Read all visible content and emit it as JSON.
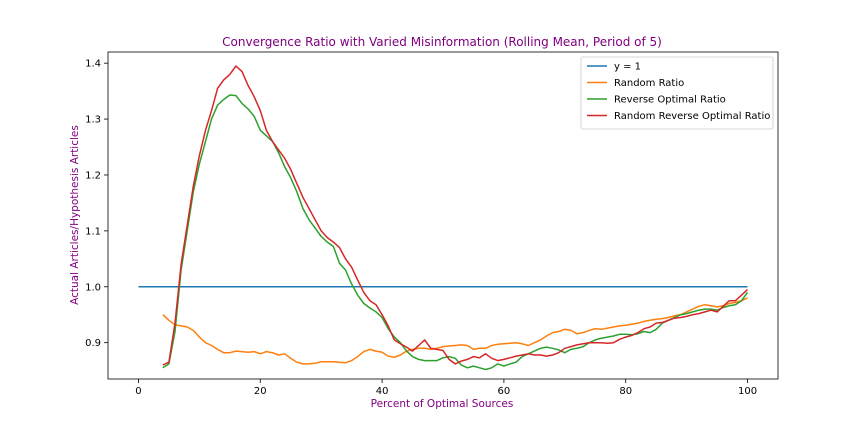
{
  "chart_data": {
    "type": "line",
    "title": "Convergence Ratio with Varied Misinformation (Rolling Mean, Period of 5)",
    "xlabel": "Percent of Optimal Sources",
    "ylabel": "Actual Articles/Hypothesis Articles",
    "xlim": [
      -5,
      105
    ],
    "ylim": [
      0.835,
      1.42
    ],
    "x_ticks": [
      0,
      20,
      40,
      60,
      80,
      100
    ],
    "x_tick_labels": [
      "0",
      "20",
      "40",
      "60",
      "80",
      "100"
    ],
    "y_ticks": [
      0.9,
      1.0,
      1.1,
      1.2,
      1.3,
      1.4
    ],
    "y_tick_labels": [
      "0.9",
      "1.0",
      "1.1",
      "1.2",
      "1.3",
      "1.4"
    ],
    "grid": false,
    "legend_position": "top-right",
    "series": [
      {
        "name": "y = 1",
        "color": "#1f77b4",
        "points": [
          [
            0,
            1.0
          ],
          [
            100,
            1.0
          ]
        ]
      },
      {
        "name": "Random Ratio",
        "color": "#ff7f0e",
        "points": [
          [
            4,
            0.95
          ],
          [
            5,
            0.94
          ],
          [
            6,
            0.932
          ],
          [
            7,
            0.93
          ],
          [
            8,
            0.928
          ],
          [
            9,
            0.922
          ],
          [
            10,
            0.91
          ],
          [
            11,
            0.9
          ],
          [
            12,
            0.895
          ],
          [
            13,
            0.888
          ],
          [
            14,
            0.882
          ],
          [
            15,
            0.882
          ],
          [
            16,
            0.885
          ],
          [
            17,
            0.884
          ],
          [
            18,
            0.883
          ],
          [
            19,
            0.884
          ],
          [
            20,
            0.88
          ],
          [
            21,
            0.884
          ],
          [
            22,
            0.882
          ],
          [
            23,
            0.878
          ],
          [
            24,
            0.88
          ],
          [
            25,
            0.872
          ],
          [
            26,
            0.865
          ],
          [
            27,
            0.862
          ],
          [
            28,
            0.862
          ],
          [
            29,
            0.863
          ],
          [
            30,
            0.866
          ],
          [
            32,
            0.866
          ],
          [
            34,
            0.864
          ],
          [
            35,
            0.868
          ],
          [
            36,
            0.875
          ],
          [
            37,
            0.884
          ],
          [
            38,
            0.888
          ],
          [
            39,
            0.885
          ],
          [
            40,
            0.883
          ],
          [
            41,
            0.876
          ],
          [
            42,
            0.874
          ],
          [
            43,
            0.878
          ],
          [
            44,
            0.885
          ],
          [
            45,
            0.888
          ],
          [
            46,
            0.89
          ],
          [
            47,
            0.89
          ],
          [
            48,
            0.888
          ],
          [
            49,
            0.89
          ],
          [
            50,
            0.893
          ],
          [
            51,
            0.894
          ],
          [
            52,
            0.895
          ],
          [
            53,
            0.896
          ],
          [
            54,
            0.895
          ],
          [
            55,
            0.888
          ],
          [
            56,
            0.89
          ],
          [
            57,
            0.89
          ],
          [
            58,
            0.895
          ],
          [
            59,
            0.897
          ],
          [
            60,
            0.898
          ],
          [
            62,
            0.9
          ],
          [
            63,
            0.898
          ],
          [
            64,
            0.895
          ],
          [
            65,
            0.9
          ],
          [
            66,
            0.905
          ],
          [
            67,
            0.912
          ],
          [
            68,
            0.918
          ],
          [
            69,
            0.92
          ],
          [
            70,
            0.924
          ],
          [
            71,
            0.922
          ],
          [
            72,
            0.916
          ],
          [
            73,
            0.918
          ],
          [
            74,
            0.922
          ],
          [
            75,
            0.925
          ],
          [
            76,
            0.924
          ],
          [
            77,
            0.926
          ],
          [
            78,
            0.928
          ],
          [
            79,
            0.93
          ],
          [
            80,
            0.931
          ],
          [
            81,
            0.933
          ],
          [
            82,
            0.935
          ],
          [
            83,
            0.938
          ],
          [
            84,
            0.94
          ],
          [
            85,
            0.942
          ],
          [
            86,
            0.943
          ],
          [
            87,
            0.945
          ],
          [
            88,
            0.948
          ],
          [
            89,
            0.95
          ],
          [
            90,
            0.955
          ],
          [
            91,
            0.96
          ],
          [
            92,
            0.965
          ],
          [
            93,
            0.968
          ],
          [
            94,
            0.966
          ],
          [
            95,
            0.964
          ],
          [
            96,
            0.966
          ],
          [
            97,
            0.97
          ],
          [
            98,
            0.972
          ],
          [
            99,
            0.975
          ],
          [
            100,
            0.98
          ]
        ]
      },
      {
        "name": "Reverse Optimal Ratio",
        "color": "#2ca02c",
        "points": [
          [
            4,
            0.855
          ],
          [
            5,
            0.862
          ],
          [
            6,
            0.92
          ],
          [
            7,
            1.03
          ],
          [
            8,
            1.1
          ],
          [
            9,
            1.17
          ],
          [
            10,
            1.22
          ],
          [
            11,
            1.26
          ],
          [
            12,
            1.3
          ],
          [
            13,
            1.325
          ],
          [
            14,
            1.335
          ],
          [
            15,
            1.343
          ],
          [
            16,
            1.342
          ],
          [
            17,
            1.328
          ],
          [
            18,
            1.318
          ],
          [
            19,
            1.305
          ],
          [
            20,
            1.28
          ],
          [
            21,
            1.27
          ],
          [
            22,
            1.26
          ],
          [
            23,
            1.24
          ],
          [
            24,
            1.215
          ],
          [
            25,
            1.195
          ],
          [
            26,
            1.17
          ],
          [
            27,
            1.14
          ],
          [
            28,
            1.12
          ],
          [
            29,
            1.105
          ],
          [
            30,
            1.09
          ],
          [
            31,
            1.08
          ],
          [
            32,
            1.072
          ],
          [
            33,
            1.042
          ],
          [
            34,
            1.03
          ],
          [
            35,
            1.005
          ],
          [
            36,
            0.985
          ],
          [
            37,
            0.97
          ],
          [
            38,
            0.962
          ],
          [
            39,
            0.955
          ],
          [
            40,
            0.945
          ],
          [
            41,
            0.925
          ],
          [
            42,
            0.91
          ],
          [
            43,
            0.9
          ],
          [
            44,
            0.885
          ],
          [
            45,
            0.875
          ],
          [
            46,
            0.87
          ],
          [
            47,
            0.868
          ],
          [
            48,
            0.868
          ],
          [
            49,
            0.868
          ],
          [
            50,
            0.873
          ],
          [
            51,
            0.875
          ],
          [
            52,
            0.872
          ],
          [
            53,
            0.86
          ],
          [
            54,
            0.855
          ],
          [
            55,
            0.858
          ],
          [
            56,
            0.855
          ],
          [
            57,
            0.852
          ],
          [
            58,
            0.855
          ],
          [
            59,
            0.862
          ],
          [
            60,
            0.858
          ],
          [
            61,
            0.862
          ],
          [
            62,
            0.865
          ],
          [
            63,
            0.875
          ],
          [
            64,
            0.88
          ],
          [
            65,
            0.885
          ],
          [
            66,
            0.89
          ],
          [
            67,
            0.892
          ],
          [
            68,
            0.89
          ],
          [
            69,
            0.887
          ],
          [
            70,
            0.882
          ],
          [
            71,
            0.888
          ],
          [
            72,
            0.89
          ],
          [
            73,
            0.893
          ],
          [
            74,
            0.9
          ],
          [
            75,
            0.905
          ],
          [
            76,
            0.908
          ],
          [
            77,
            0.91
          ],
          [
            78,
            0.912
          ],
          [
            79,
            0.915
          ],
          [
            80,
            0.915
          ],
          [
            81,
            0.914
          ],
          [
            82,
            0.916
          ],
          [
            83,
            0.92
          ],
          [
            84,
            0.918
          ],
          [
            85,
            0.924
          ],
          [
            86,
            0.935
          ],
          [
            87,
            0.94
          ],
          [
            88,
            0.945
          ],
          [
            89,
            0.95
          ],
          [
            90,
            0.952
          ],
          [
            91,
            0.955
          ],
          [
            92,
            0.958
          ],
          [
            93,
            0.96
          ],
          [
            94,
            0.96
          ],
          [
            95,
            0.958
          ],
          [
            96,
            0.963
          ],
          [
            97,
            0.966
          ],
          [
            98,
            0.968
          ],
          [
            99,
            0.975
          ],
          [
            100,
            0.99
          ]
        ]
      },
      {
        "name": "Random Reverse Optimal Ratio",
        "color": "#d62728",
        "points": [
          [
            4,
            0.86
          ],
          [
            5,
            0.865
          ],
          [
            6,
            0.935
          ],
          [
            7,
            1.04
          ],
          [
            8,
            1.11
          ],
          [
            9,
            1.18
          ],
          [
            10,
            1.235
          ],
          [
            11,
            1.28
          ],
          [
            12,
            1.315
          ],
          [
            13,
            1.355
          ],
          [
            14,
            1.37
          ],
          [
            15,
            1.38
          ],
          [
            16,
            1.395
          ],
          [
            17,
            1.385
          ],
          [
            18,
            1.36
          ],
          [
            19,
            1.34
          ],
          [
            20,
            1.315
          ],
          [
            21,
            1.28
          ],
          [
            22,
            1.26
          ],
          [
            23,
            1.245
          ],
          [
            24,
            1.23
          ],
          [
            25,
            1.21
          ],
          [
            26,
            1.185
          ],
          [
            27,
            1.16
          ],
          [
            28,
            1.14
          ],
          [
            29,
            1.12
          ],
          [
            30,
            1.1
          ],
          [
            31,
            1.088
          ],
          [
            32,
            1.08
          ],
          [
            33,
            1.07
          ],
          [
            34,
            1.05
          ],
          [
            35,
            1.035
          ],
          [
            36,
            1.012
          ],
          [
            37,
            0.99
          ],
          [
            38,
            0.975
          ],
          [
            39,
            0.968
          ],
          [
            40,
            0.95
          ],
          [
            41,
            0.93
          ],
          [
            42,
            0.905
          ],
          [
            43,
            0.898
          ],
          [
            44,
            0.892
          ],
          [
            45,
            0.885
          ],
          [
            46,
            0.895
          ],
          [
            47,
            0.905
          ],
          [
            48,
            0.89
          ],
          [
            49,
            0.888
          ],
          [
            50,
            0.886
          ],
          [
            51,
            0.87
          ],
          [
            52,
            0.862
          ],
          [
            53,
            0.867
          ],
          [
            54,
            0.87
          ],
          [
            55,
            0.875
          ],
          [
            56,
            0.873
          ],
          [
            57,
            0.88
          ],
          [
            58,
            0.872
          ],
          [
            59,
            0.868
          ],
          [
            60,
            0.87
          ],
          [
            61,
            0.873
          ],
          [
            62,
            0.876
          ],
          [
            63,
            0.878
          ],
          [
            64,
            0.88
          ],
          [
            65,
            0.878
          ],
          [
            66,
            0.878
          ],
          [
            67,
            0.876
          ],
          [
            68,
            0.878
          ],
          [
            69,
            0.882
          ],
          [
            70,
            0.89
          ],
          [
            71,
            0.893
          ],
          [
            72,
            0.896
          ],
          [
            73,
            0.898
          ],
          [
            74,
            0.9
          ],
          [
            75,
            0.9
          ],
          [
            76,
            0.9
          ],
          [
            77,
            0.899
          ],
          [
            78,
            0.9
          ],
          [
            79,
            0.906
          ],
          [
            80,
            0.91
          ],
          [
            81,
            0.913
          ],
          [
            82,
            0.918
          ],
          [
            83,
            0.925
          ],
          [
            84,
            0.928
          ],
          [
            85,
            0.935
          ],
          [
            86,
            0.936
          ],
          [
            87,
            0.94
          ],
          [
            88,
            0.944
          ],
          [
            89,
            0.945
          ],
          [
            90,
            0.947
          ],
          [
            91,
            0.95
          ],
          [
            92,
            0.952
          ],
          [
            93,
            0.955
          ],
          [
            94,
            0.958
          ],
          [
            95,
            0.955
          ],
          [
            96,
            0.965
          ],
          [
            97,
            0.975
          ],
          [
            98,
            0.975
          ],
          [
            99,
            0.985
          ],
          [
            100,
            0.995
          ]
        ]
      }
    ]
  }
}
